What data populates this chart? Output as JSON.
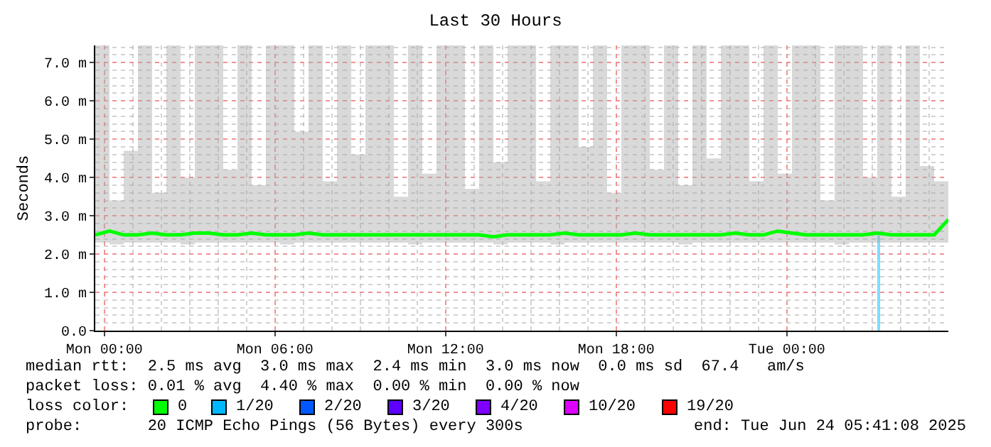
{
  "chart_data": {
    "type": "line",
    "title": "Last 30 Hours",
    "ylabel": "Seconds",
    "xlim": [
      "2025-06-22T23:41",
      "2025-06-24T05:41"
    ],
    "xticks": [
      {
        "value": "2025-06-23T00:00",
        "label": "Mon 00:00"
      },
      {
        "value": "2025-06-23T06:00",
        "label": "Mon 06:00"
      },
      {
        "value": "2025-06-23T12:00",
        "label": "Mon 12:00"
      },
      {
        "value": "2025-06-23T18:00",
        "label": "Mon 18:00"
      },
      {
        "value": "2025-06-24T00:00",
        "label": "Tue 00:00"
      }
    ],
    "ylim": [
      0,
      7.45
    ],
    "yticks": [
      {
        "value": 0,
        "label": "0.0"
      },
      {
        "value": 1,
        "label": "1.0 m"
      },
      {
        "value": 2,
        "label": "2.0 m"
      },
      {
        "value": 3,
        "label": "3.0 m"
      },
      {
        "value": 4,
        "label": "4.0 m"
      },
      {
        "value": 5,
        "label": "5.0 m"
      },
      {
        "value": 6,
        "label": "6.0 m"
      },
      {
        "value": 7,
        "label": "7.0 m"
      }
    ],
    "x": [
      "2025-06-22T23:41",
      "2025-06-23T00:11",
      "2025-06-23T00:41",
      "2025-06-23T01:11",
      "2025-06-23T01:41",
      "2025-06-23T02:11",
      "2025-06-23T02:41",
      "2025-06-23T03:11",
      "2025-06-23T03:41",
      "2025-06-23T04:11",
      "2025-06-23T04:41",
      "2025-06-23T05:11",
      "2025-06-23T05:41",
      "2025-06-23T06:11",
      "2025-06-23T06:41",
      "2025-06-23T07:11",
      "2025-06-23T07:41",
      "2025-06-23T08:11",
      "2025-06-23T08:41",
      "2025-06-23T09:11",
      "2025-06-23T09:41",
      "2025-06-23T10:11",
      "2025-06-23T10:41",
      "2025-06-23T11:11",
      "2025-06-23T11:41",
      "2025-06-23T12:11",
      "2025-06-23T12:41",
      "2025-06-23T13:11",
      "2025-06-23T13:41",
      "2025-06-23T14:11",
      "2025-06-23T14:41",
      "2025-06-23T15:11",
      "2025-06-23T15:41",
      "2025-06-23T16:11",
      "2025-06-23T16:41",
      "2025-06-23T17:11",
      "2025-06-23T17:41",
      "2025-06-23T18:11",
      "2025-06-23T18:41",
      "2025-06-23T19:11",
      "2025-06-23T19:41",
      "2025-06-23T20:11",
      "2025-06-23T20:41",
      "2025-06-23T21:11",
      "2025-06-23T21:41",
      "2025-06-23T22:11",
      "2025-06-23T22:41",
      "2025-06-23T23:11",
      "2025-06-23T23:41",
      "2025-06-24T00:11",
      "2025-06-24T00:41",
      "2025-06-24T01:11",
      "2025-06-24T01:41",
      "2025-06-24T02:11",
      "2025-06-24T02:41",
      "2025-06-24T03:11",
      "2025-06-24T03:41",
      "2025-06-24T04:11",
      "2025-06-24T04:41",
      "2025-06-24T05:11",
      "2025-06-24T05:41"
    ],
    "grid": true,
    "legend": "bottom",
    "legend_title": "loss color:",
    "series": [
      {
        "name": "0",
        "color": "#00ff00",
        "values": [
          2.5,
          2.6,
          2.5,
          2.5,
          2.55,
          2.5,
          2.5,
          2.55,
          2.55,
          2.5,
          2.5,
          2.55,
          2.5,
          2.5,
          2.5,
          2.55,
          2.5,
          2.5,
          2.5,
          2.5,
          2.5,
          2.5,
          2.5,
          2.5,
          2.5,
          2.5,
          2.5,
          2.5,
          2.45,
          2.5,
          2.5,
          2.5,
          2.5,
          2.55,
          2.5,
          2.5,
          2.5,
          2.5,
          2.55,
          2.5,
          2.5,
          2.5,
          2.5,
          2.5,
          2.5,
          2.55,
          2.5,
          2.5,
          2.6,
          2.55,
          2.5,
          2.5,
          2.5,
          2.5,
          2.5,
          2.55,
          2.5,
          2.5,
          2.5,
          2.5,
          2.9
        ],
        "lower": [
          2.3,
          2.25,
          2.3,
          2.3,
          2.3,
          2.3,
          2.25,
          2.3,
          2.3,
          2.3,
          2.3,
          2.3,
          2.3,
          2.25,
          2.3,
          2.3,
          2.3,
          2.3,
          2.3,
          2.3,
          2.3,
          2.3,
          2.25,
          2.3,
          2.3,
          2.3,
          2.3,
          2.3,
          2.25,
          2.3,
          2.3,
          2.3,
          2.25,
          2.3,
          2.3,
          2.3,
          2.3,
          2.3,
          2.3,
          2.3,
          2.3,
          2.25,
          2.3,
          2.3,
          2.3,
          2.3,
          2.3,
          2.3,
          2.3,
          2.3,
          2.3,
          2.3,
          2.25,
          2.3,
          2.3,
          2.3,
          2.3,
          2.3,
          2.3,
          2.3,
          2.4
        ],
        "upper": [
          7.45,
          3.4,
          4.7,
          7.45,
          3.6,
          7.45,
          4.0,
          7.45,
          7.45,
          4.2,
          7.45,
          3.8,
          7.45,
          7.45,
          5.2,
          7.45,
          3.9,
          7.45,
          4.6,
          7.45,
          7.45,
          3.5,
          7.45,
          4.1,
          7.45,
          7.45,
          3.7,
          7.45,
          4.4,
          7.45,
          7.45,
          3.9,
          7.45,
          7.45,
          4.8,
          7.45,
          3.6,
          7.45,
          7.45,
          4.2,
          7.45,
          3.8,
          7.45,
          4.5,
          7.45,
          7.45,
          3.9,
          7.45,
          4.1,
          7.45,
          7.45,
          3.4,
          7.45,
          7.45,
          4.0,
          7.45,
          3.5,
          7.45,
          4.3,
          3.9,
          7.45
        ]
      },
      {
        "name": "1/20",
        "type": "bar",
        "color": "#00b8ff",
        "x": [
          "2025-06-24T03:14"
        ],
        "values": [
          2.5
        ]
      },
      {
        "name": "2/20",
        "type": "bar",
        "color": "#0059ff",
        "values": [
          null,
          null,
          null,
          null,
          null,
          null,
          null,
          null,
          null,
          null,
          null,
          null,
          null,
          null,
          null,
          null,
          null,
          null,
          null,
          null,
          null,
          null,
          null,
          null,
          null,
          null,
          null,
          null,
          null,
          null,
          null,
          null,
          null,
          null,
          null,
          null,
          null,
          null,
          null,
          null,
          null,
          null,
          null,
          null,
          null,
          null,
          null,
          null,
          null,
          null,
          null,
          null,
          null,
          null,
          null,
          null,
          null,
          null,
          null,
          null,
          null
        ]
      },
      {
        "name": "3/20",
        "type": "bar",
        "color": "#5e00ff",
        "values": [
          null,
          null,
          null,
          null,
          null,
          null,
          null,
          null,
          null,
          null,
          null,
          null,
          null,
          null,
          null,
          null,
          null,
          null,
          null,
          null,
          null,
          null,
          null,
          null,
          null,
          null,
          null,
          null,
          null,
          null,
          null,
          null,
          null,
          null,
          null,
          null,
          null,
          null,
          null,
          null,
          null,
          null,
          null,
          null,
          null,
          null,
          null,
          null,
          null,
          null,
          null,
          null,
          null,
          null,
          null,
          null,
          null,
          null,
          null,
          null,
          null
        ]
      },
      {
        "name": "4/20",
        "type": "bar",
        "color": "#7e00ff",
        "values": [
          null,
          null,
          null,
          null,
          null,
          null,
          null,
          null,
          null,
          null,
          null,
          null,
          null,
          null,
          null,
          null,
          null,
          null,
          null,
          null,
          null,
          null,
          null,
          null,
          null,
          null,
          null,
          null,
          null,
          null,
          null,
          null,
          null,
          null,
          null,
          null,
          null,
          null,
          null,
          null,
          null,
          null,
          null,
          null,
          null,
          null,
          null,
          null,
          null,
          null,
          null,
          null,
          null,
          null,
          null,
          null,
          null,
          null,
          null,
          null,
          null
        ]
      },
      {
        "name": "10/20",
        "type": "bar",
        "color": "#dd00ff",
        "values": [
          null,
          null,
          null,
          null,
          null,
          null,
          null,
          null,
          null,
          null,
          null,
          null,
          null,
          null,
          null,
          null,
          null,
          null,
          null,
          null,
          null,
          null,
          null,
          null,
          null,
          null,
          null,
          null,
          null,
          null,
          null,
          null,
          null,
          null,
          null,
          null,
          null,
          null,
          null,
          null,
          null,
          null,
          null,
          null,
          null,
          null,
          null,
          null,
          null,
          null,
          null,
          null,
          null,
          null,
          null,
          null,
          null,
          null,
          null,
          null,
          null
        ]
      },
      {
        "name": "19/20",
        "type": "bar",
        "color": "#ff0000",
        "values": [
          null,
          null,
          null,
          null,
          null,
          null,
          null,
          null,
          null,
          null,
          null,
          null,
          null,
          null,
          null,
          null,
          null,
          null,
          null,
          null,
          null,
          null,
          null,
          null,
          null,
          null,
          null,
          null,
          null,
          null,
          null,
          null,
          null,
          null,
          null,
          null,
          null,
          null,
          null,
          null,
          null,
          null,
          null,
          null,
          null,
          null,
          null,
          null,
          null,
          null,
          null,
          null,
          null,
          null,
          null,
          null,
          null,
          null,
          null,
          null,
          null
        ]
      }
    ],
    "annotations": [
      "median rtt:  2.5 ms avg  3.0 ms max  2.4 ms min  3.0 ms now  0.0 ms sd  67.4   am/s",
      "packet loss: 0.01 % avg  4.40 % max  0.00 % min  0.00 % now",
      "probe:       20 ICMP Echo Pings (56 Bytes) every 300s",
      "end: Tue Jun 24 05:41:08 2025"
    ]
  }
}
